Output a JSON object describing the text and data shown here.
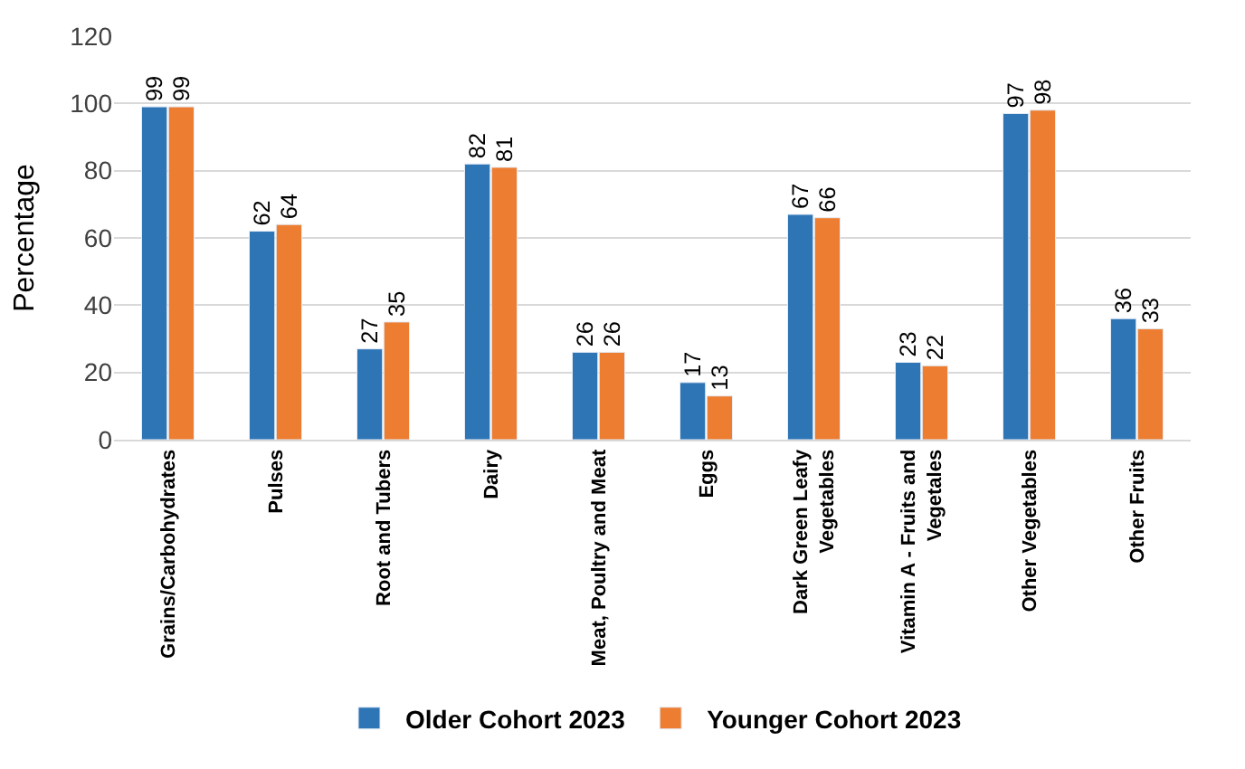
{
  "chart_data": {
    "type": "bar",
    "ylabel": "Percentage",
    "categories": [
      "Grains/Carbohydrates",
      "Pulses",
      "Root and Tubers",
      "Dairy",
      "Meat, Poultry and Meat",
      "Eggs",
      "Dark Green Leafy\nVegetables",
      "Vitamin A - Fruits and\nVegetales",
      "Other Vegetables",
      "Other Fruits"
    ],
    "series": [
      {
        "name": "Older Cohort 2023",
        "color": "#2e75b6",
        "values": [
          99,
          62,
          27,
          82,
          26,
          17,
          67,
          23,
          97,
          36
        ]
      },
      {
        "name": "Younger Cohort 2023",
        "color": "#ed7d31",
        "values": [
          99,
          64,
          35,
          81,
          26,
          13,
          66,
          22,
          98,
          33
        ]
      }
    ],
    "ylim": [
      0,
      120
    ],
    "yticks": [
      0,
      20,
      40,
      60,
      80,
      100,
      120
    ],
    "grid": "y",
    "legend": "bottom",
    "data_labels": true
  }
}
